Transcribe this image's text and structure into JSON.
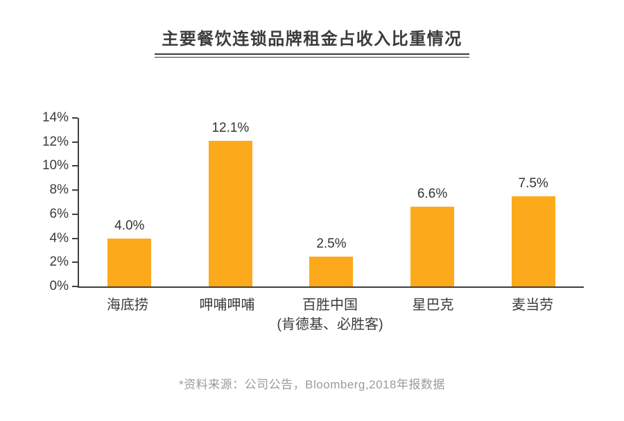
{
  "title": "主要餐饮连锁品牌租金占收入比重情况",
  "footer": "*资料来源：公司公告，Bloomberg,2018年报数据",
  "colors": {
    "bar": "#FCAA1B",
    "axis": "#3f3f3f",
    "title_text": "#3b3b3b",
    "label_text": "#3b3b3b",
    "value_text": "#333333",
    "footer_text": "#9b9b9b",
    "background": "#ffffff"
  },
  "chart_data": {
    "type": "bar",
    "title": "主要餐饮连锁品牌租金占收入比重情况",
    "categories": [
      "海底捞",
      "呷哺呷哺",
      "百胜中国",
      "星巴克",
      "麦当劳"
    ],
    "category_sublabels": [
      "",
      "",
      "(肯德基、必胜客)",
      "",
      ""
    ],
    "values": [
      4.0,
      12.1,
      2.5,
      6.6,
      7.5
    ],
    "value_labels": [
      "4.0%",
      "12.1%",
      "2.5%",
      "6.6%",
      "7.5%"
    ],
    "xlabel": "",
    "ylabel": "",
    "ylim": [
      0,
      14
    ],
    "ytick_step": 2,
    "ytick_labels": [
      "0%",
      "2%",
      "4%",
      "6%",
      "8%",
      "10%",
      "12%",
      "14%"
    ],
    "grid": false,
    "legend": null,
    "bar_color": "#FCAA1B"
  }
}
